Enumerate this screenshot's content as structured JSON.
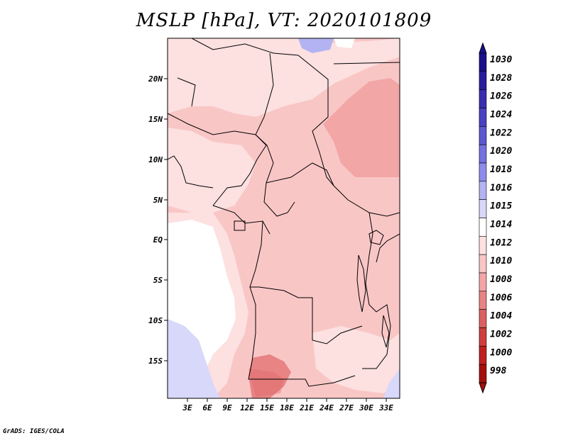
{
  "title": "MSLP [hPa], VT: 2020101809",
  "credit": "GrADS: IGES/COLA",
  "map": {
    "lat_ticks": [
      "20N",
      "15N",
      "10N",
      "5N",
      "EQ",
      "5S",
      "10S",
      "15S"
    ],
    "lon_ticks": [
      "3E",
      "6E",
      "9E",
      "12E",
      "15E",
      "18E",
      "21E",
      "24E",
      "27E",
      "30E",
      "33E"
    ]
  },
  "colorbar": {
    "levels": [
      "1030",
      "1028",
      "1026",
      "1024",
      "1022",
      "1020",
      "1018",
      "1016",
      "1015",
      "1014",
      "1012",
      "1010",
      "1008",
      "1006",
      "1004",
      "1002",
      "1000",
      "998"
    ],
    "colors": [
      "#1a0f8a",
      "#2a1c9e",
      "#3a2db0",
      "#4a40c2",
      "#5c58d2",
      "#7370e0",
      "#8d8cea",
      "#b3b3f2",
      "#d8d8fa",
      "#ffffff",
      "#fde0e0",
      "#f9c6c6",
      "#f3a6a6",
      "#e88484",
      "#dc6060",
      "#d03e3e",
      "#c02020",
      "#a50f0f"
    ]
  }
}
